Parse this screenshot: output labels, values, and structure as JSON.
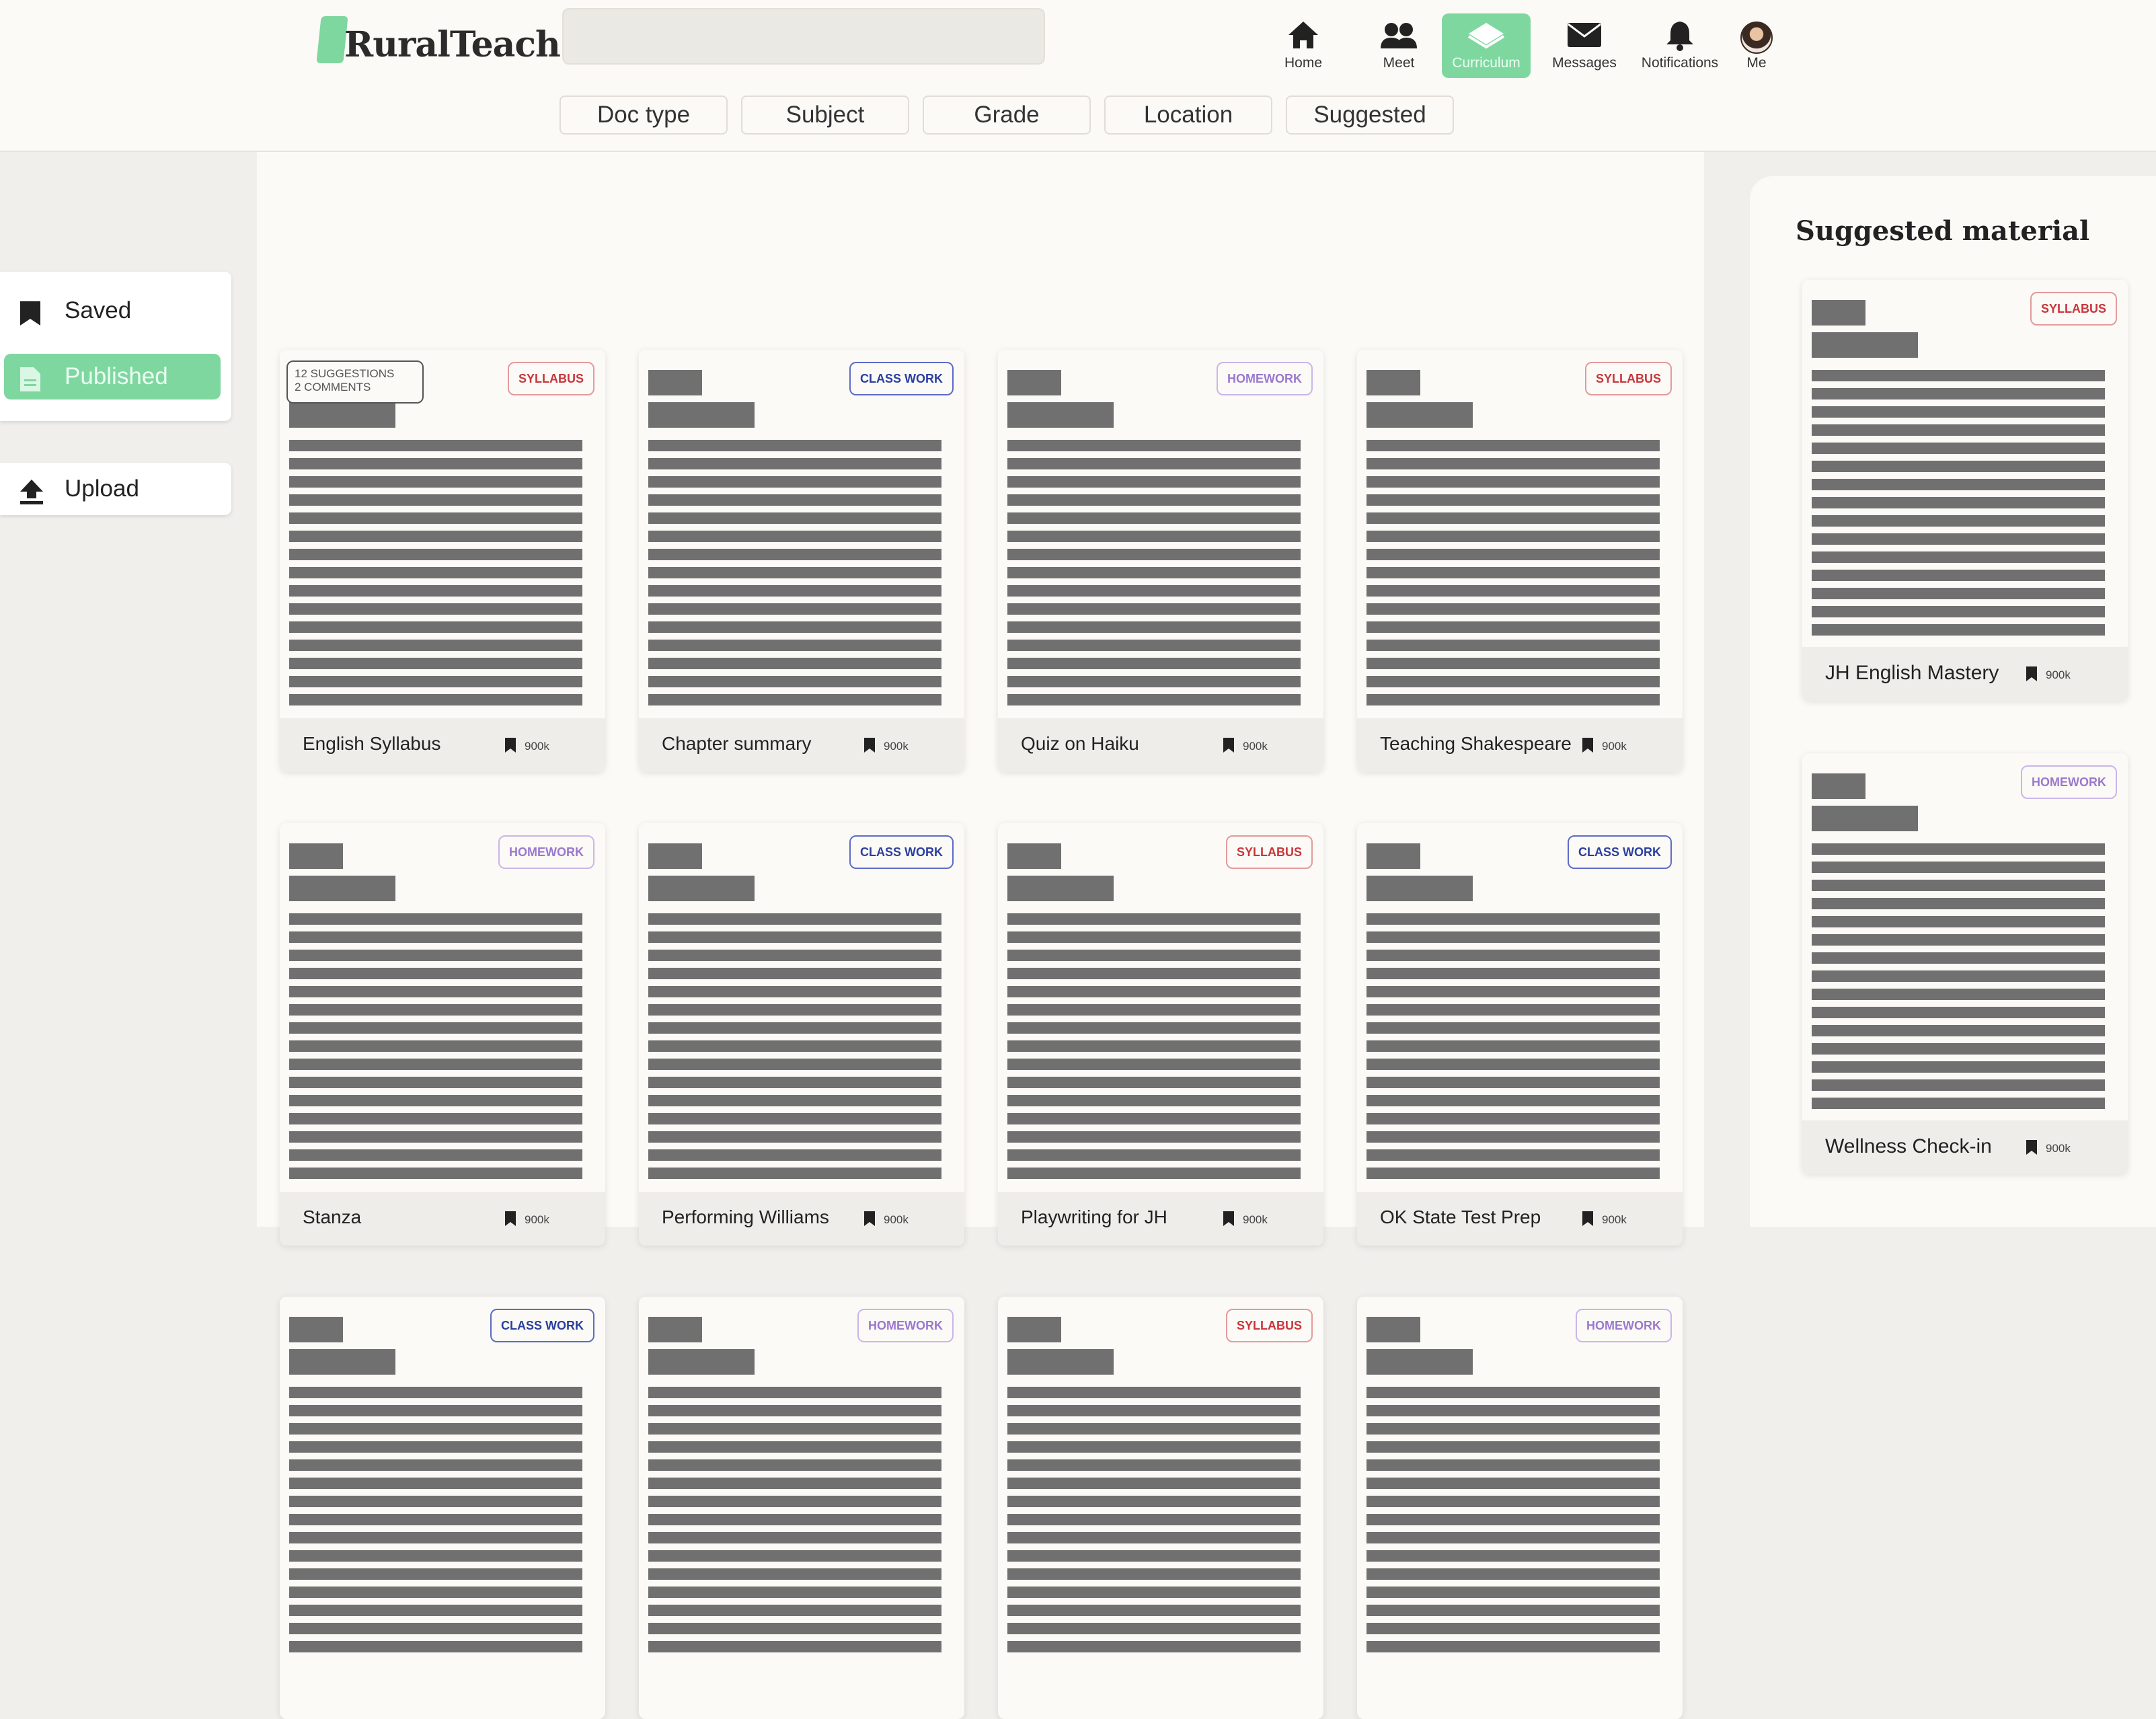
{
  "app": {
    "name": "RuralTeach"
  },
  "search": {
    "placeholder": ""
  },
  "nav": [
    {
      "label": "Home",
      "icon": "home-icon",
      "active": false
    },
    {
      "label": "Meet",
      "icon": "people-icon",
      "active": false
    },
    {
      "label": "Curriculum",
      "icon": "book-icon",
      "active": true
    },
    {
      "label": "Messages",
      "icon": "envelope-icon",
      "active": false
    },
    {
      "label": "Notifications",
      "icon": "bell-icon",
      "active": false
    },
    {
      "label": "Me",
      "icon": "avatar",
      "active": false
    }
  ],
  "filters": [
    "Doc type",
    "Subject",
    "Grade",
    "Location",
    "Suggested"
  ],
  "sidebar": {
    "saved": "Saved",
    "published": "Published",
    "upload": "Upload"
  },
  "tags": {
    "syllabus": "SYLLABUS",
    "classwork": "CLASS WORK",
    "homework": "HOMEWORK"
  },
  "badge": {
    "suggestions": "12 SUGGESTIONS",
    "comments": "2 COMMENTS"
  },
  "cards": [
    {
      "title": "English Syllabus",
      "tag": "SYLLABUS",
      "saves": "900k"
    },
    {
      "title": "Chapter summary",
      "tag": "CLASS WORK",
      "saves": "900k"
    },
    {
      "title": "Quiz on Haiku",
      "tag": "HOMEWORK",
      "saves": "900k"
    },
    {
      "title": "Teaching Shakespeare",
      "tag": "SYLLABUS",
      "saves": "900k"
    },
    {
      "title": "Stanza",
      "tag": "HOMEWORK",
      "saves": "900k"
    },
    {
      "title": "Performing Williams",
      "tag": "CLASS WORK",
      "saves": "900k"
    },
    {
      "title": "Playwriting for JH",
      "tag": "SYLLABUS",
      "saves": "900k"
    },
    {
      "title": "OK State Test Prep",
      "tag": "CLASS WORK",
      "saves": "900k"
    },
    {
      "title": "",
      "tag": "CLASS WORK",
      "saves": ""
    },
    {
      "title": "",
      "tag": "HOMEWORK",
      "saves": ""
    },
    {
      "title": "",
      "tag": "SYLLABUS",
      "saves": ""
    },
    {
      "title": "",
      "tag": "HOMEWORK",
      "saves": ""
    }
  ],
  "suggested": {
    "title": "Suggested material",
    "cards": [
      {
        "title": "JH English Mastery",
        "tag": "SYLLABUS",
        "saves": "900k"
      },
      {
        "title": "Wellness Check-in",
        "tag": "HOMEWORK",
        "saves": "900k"
      }
    ]
  },
  "colors": {
    "accent": "#7fd7a0",
    "syllabus": "#c8363c",
    "classwork": "#2a3f9e",
    "homework": "#9a78cf"
  }
}
